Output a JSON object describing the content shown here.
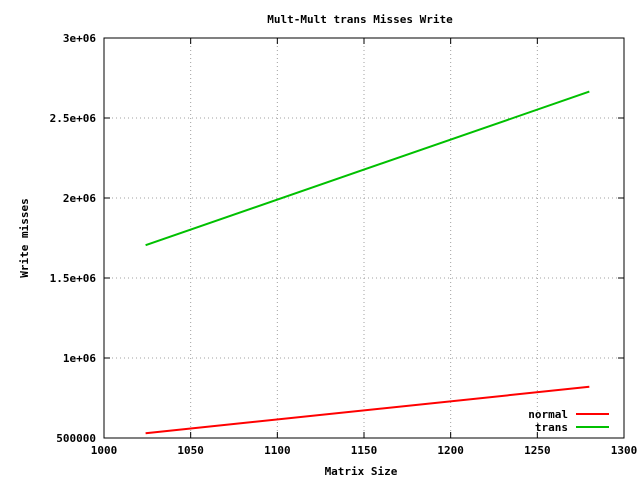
{
  "chart_data": {
    "type": "line",
    "title": "Mult-Mult trans Misses Write",
    "xlabel": "Matrix Size",
    "ylabel": "Write misses",
    "xlim": [
      1000,
      1300
    ],
    "ylim": [
      500000,
      3000000
    ],
    "xticks": [
      1000,
      1050,
      1100,
      1150,
      1200,
      1250,
      1300
    ],
    "xtick_labels": [
      "1000",
      "1050",
      "1100",
      "1150",
      "1200",
      "1250",
      "1300"
    ],
    "yticks": [
      500000,
      1000000,
      1500000,
      2000000,
      2500000,
      3000000
    ],
    "ytick_labels": [
      "500000",
      "1e+06",
      "1.5e+06",
      "2e+06",
      "2.5e+06",
      "3e+06"
    ],
    "grid": true,
    "legend_position": "bottom-right",
    "series": [
      {
        "name": "normal",
        "color": "#ff0000",
        "x": [
          1024,
          1280
        ],
        "y": [
          530000,
          820000
        ]
      },
      {
        "name": "trans",
        "color": "#00c000",
        "x": [
          1024,
          1280
        ],
        "y": [
          1705000,
          2665000
        ]
      }
    ]
  }
}
